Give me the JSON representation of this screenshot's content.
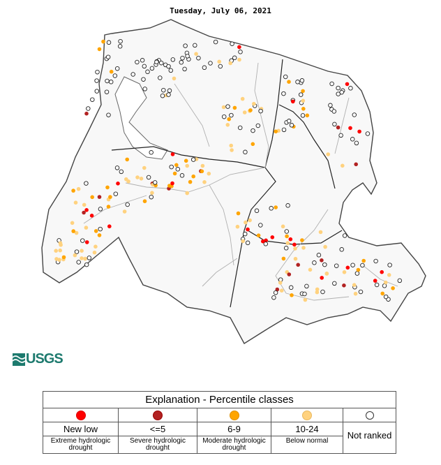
{
  "title": "Tuesday, July 06, 2021",
  "logo_text": "USGS",
  "legend": {
    "title": "Explanation - Percentile classes",
    "classes": [
      {
        "label": "New low",
        "description": "Extreme hydrologic drought",
        "color": "#ff0000"
      },
      {
        "label": "<=5",
        "description": "Severe hydrologic drought",
        "color": "#b22222"
      },
      {
        "label": "6-9",
        "description": "Moderate hydrologic drought",
        "color": "#ffa500"
      },
      {
        "label": "10-24",
        "description": "Below normal",
        "color": "#ffd27f"
      }
    ],
    "not_ranked": {
      "label": "Not ranked",
      "color": "#ffffff"
    }
  },
  "colors": {
    "map_fill": "#f8f8f8",
    "border": "#222222",
    "river": "#b0b0b0",
    "coast": "#555555"
  }
}
